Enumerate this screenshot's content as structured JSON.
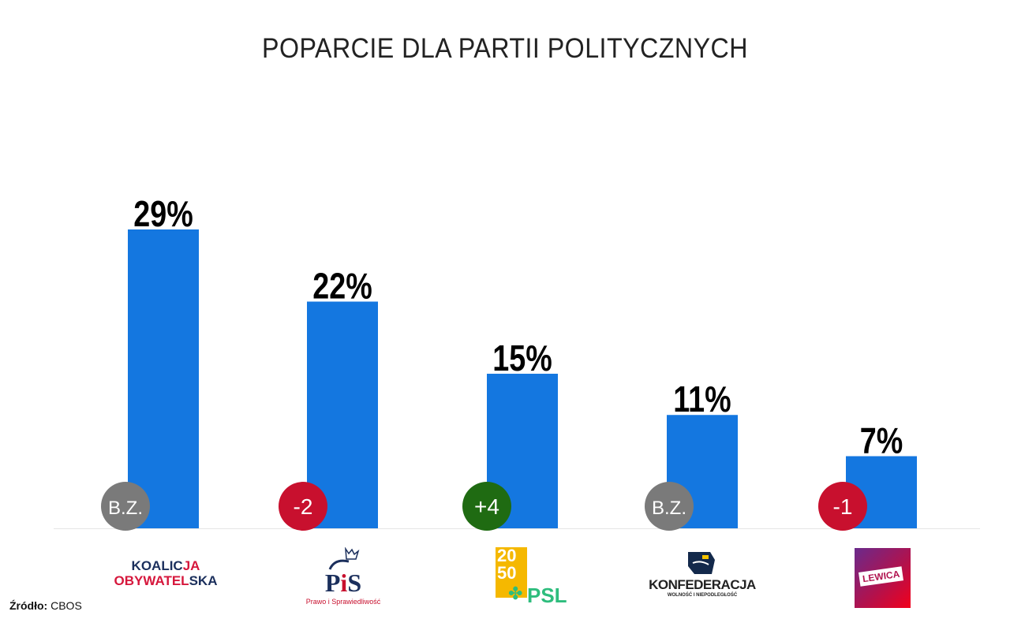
{
  "chart_data": {
    "type": "bar",
    "title": "POPARCIE DLA PARTII POLITYCZNYCH",
    "categories": [
      "Koalicja Obywatelska",
      "PiS",
      "Polska 2050 / PSL",
      "Konfederacja",
      "Lewica"
    ],
    "values": [
      29,
      22,
      15,
      11,
      7
    ],
    "value_labels": [
      "29%",
      "22%",
      "15%",
      "11%",
      "7%"
    ],
    "changes": [
      "B.Z.",
      "-2",
      "+4",
      "B.Z.",
      "-1"
    ],
    "change_colors": [
      "#7a7a7a",
      "#c8102e",
      "#1f6b12",
      "#7a7a7a",
      "#c8102e"
    ],
    "bar_color": "#1477e0",
    "ylim": [
      0,
      30
    ],
    "grid": false,
    "xlabel": "",
    "ylabel": ""
  },
  "logos": {
    "ko": {
      "line1a": "KOALIC",
      "line1b": "JA",
      "line2a": "OBYWATEL",
      "line2b": "SKA"
    },
    "pis": {
      "main_p": "P",
      "main_i": "i",
      "main_s": "S",
      "sub": "Prawo i Sprawiedliwość"
    },
    "psl": {
      "top": "20",
      "mid": "50",
      "name": "PSL"
    },
    "konf": {
      "name": "KONFEDERACJA",
      "sub": "WOLNOŚĆ I NIEPODLEGŁOŚĆ"
    },
    "lewica": {
      "name": "LEWICA"
    }
  },
  "source": {
    "label": "Źródło:",
    "value": "CBOS"
  }
}
